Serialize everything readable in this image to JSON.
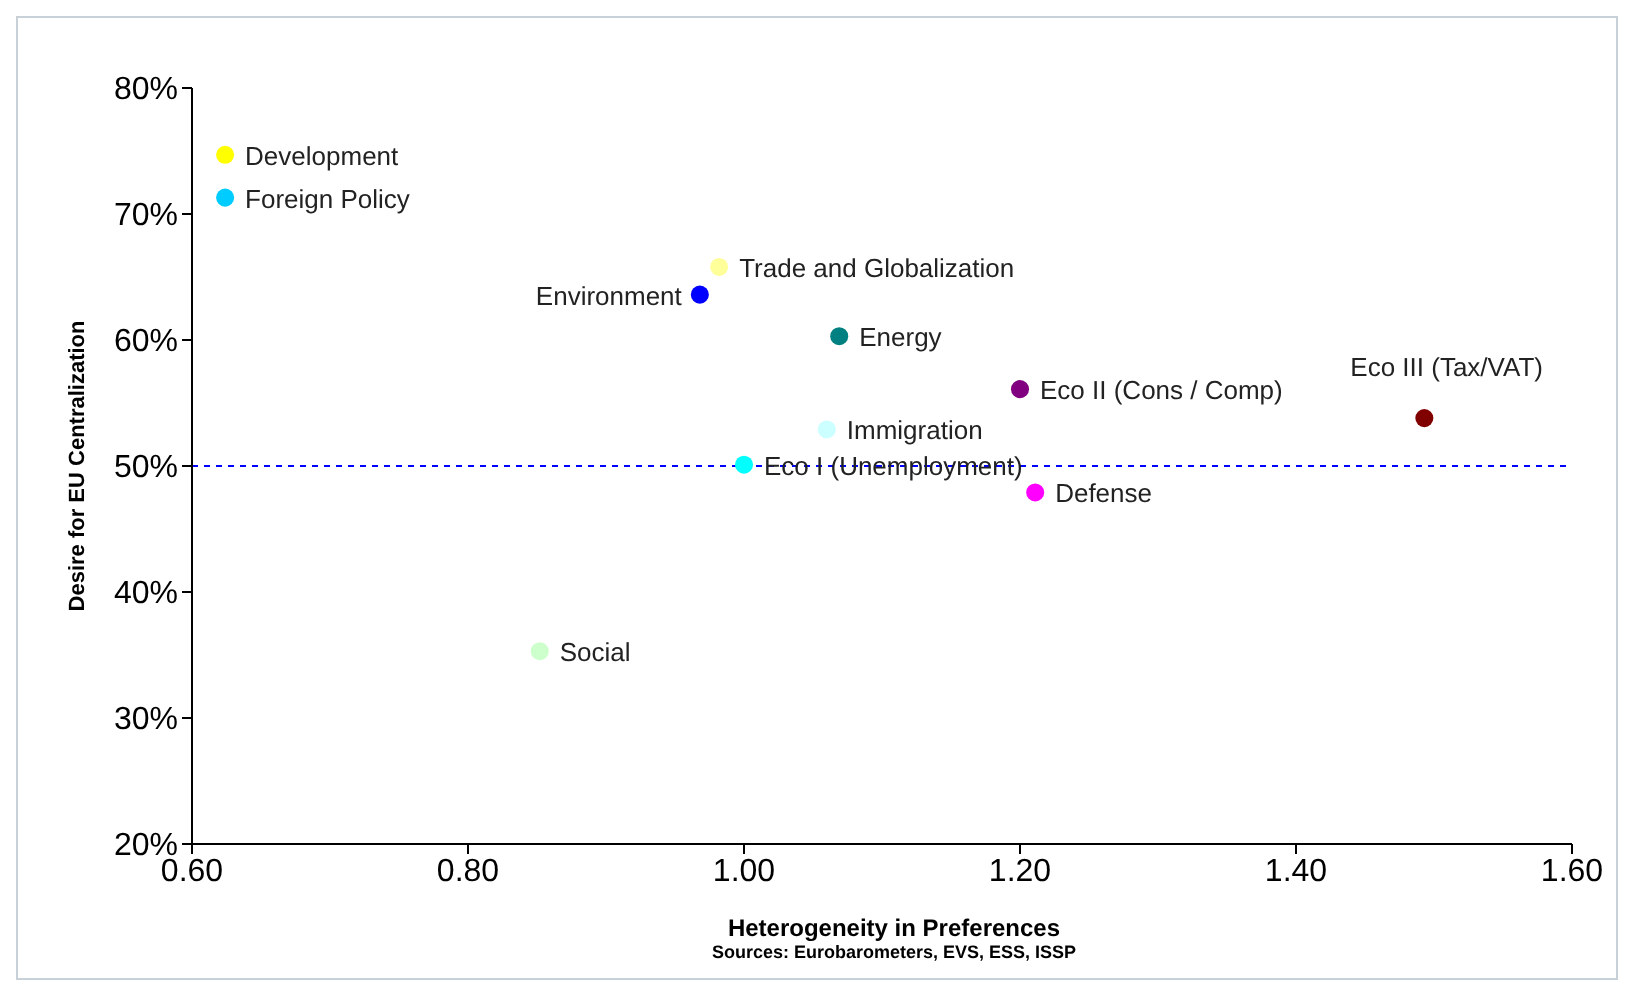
{
  "chart_data": {
    "type": "scatter",
    "xlabel": "Heterogeneity in Preferences",
    "ylabel": "Desire for EU Centralization",
    "xlim": [
      0.6,
      1.6
    ],
    "xticks": [
      {
        "value": 0.6,
        "label": "0.60"
      },
      {
        "value": 0.8,
        "label": "0.80"
      },
      {
        "value": 1.0,
        "label": "1.00"
      },
      {
        "value": 1.2,
        "label": "1.20"
      },
      {
        "value": 1.4,
        "label": "1.40"
      },
      {
        "value": 1.6,
        "label": "1.60"
      }
    ],
    "ylim": [
      20,
      80
    ],
    "yticks": [
      {
        "value": 20,
        "label": "20%"
      },
      {
        "value": 30,
        "label": "30%"
      },
      {
        "value": 40,
        "label": "40%"
      },
      {
        "value": 50,
        "label": "50%"
      },
      {
        "value": 60,
        "label": "60%"
      },
      {
        "value": 70,
        "label": "70%"
      },
      {
        "value": 80,
        "label": "80%"
      }
    ],
    "marker": "circle",
    "grid": false,
    "legend": false,
    "ref_lines": [
      {
        "axis": "y",
        "value": 50,
        "color": "#0000ff",
        "line_style": "dashed"
      }
    ],
    "x": [
      0.624,
      0.624,
      0.982,
      0.968,
      1.069,
      1.2,
      1.493,
      1.06,
      1.0,
      1.211,
      0.852
    ],
    "values": [
      74.7,
      71.3,
      65.8,
      63.6,
      60.3,
      56.1,
      53.8,
      52.9,
      50.1,
      47.9,
      35.3
    ],
    "colors": [
      "#ffff00",
      "#00ccff",
      "#ffff99",
      "#0000ff",
      "#008080",
      "#800080",
      "#800000",
      "#ccffff",
      "#00ffff",
      "#ff00ff",
      "#ccffcc"
    ],
    "annotations": [
      {
        "text": "Development",
        "x": 0.624,
        "y": 74.7
      },
      {
        "text": "Foreign Policy",
        "x": 0.624,
        "y": 71.3
      },
      {
        "text": "Trade and Globalization",
        "x": 0.982,
        "y": 65.8
      },
      {
        "text": "Environment",
        "x": 0.968,
        "y": 63.6
      },
      {
        "text": "Energy",
        "x": 1.069,
        "y": 60.3
      },
      {
        "text": "Eco II (Cons / Comp)",
        "x": 1.2,
        "y": 56.1
      },
      {
        "text": "Eco III  (Tax/VAT)",
        "x": 1.493,
        "y": 53.8
      },
      {
        "text": "Immigration",
        "x": 1.06,
        "y": 52.9
      },
      {
        "text": "Eco I (Unemployment)",
        "x": 1.0,
        "y": 50.1
      },
      {
        "text": "Defense",
        "x": 1.211,
        "y": 47.9
      },
      {
        "text": "Social",
        "x": 0.852,
        "y": 35.3
      },
      "Sources: Eurobarometers, EVS, ESS, ISSP"
    ]
  }
}
